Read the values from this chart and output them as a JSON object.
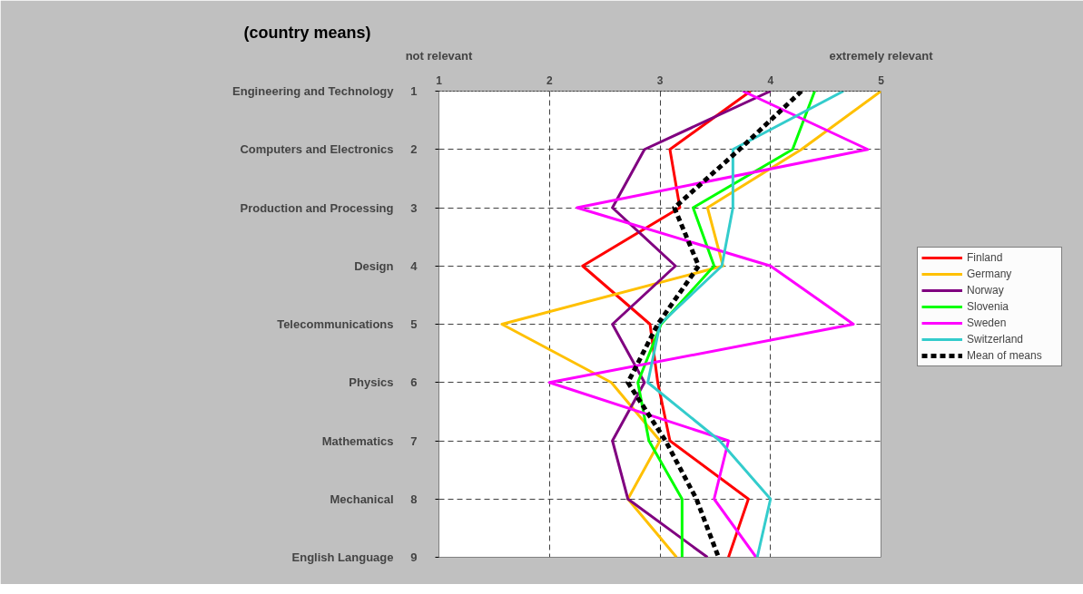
{
  "chart_data": {
    "type": "line",
    "orientation": "horizontal",
    "title": "(country means)",
    "categories": [
      "Engineering and Technology",
      "Computers and Electronics",
      "Production and Processing",
      "Design",
      "Telecommunications",
      "Physics",
      "Mathematics",
      "Mechanical",
      "English Language"
    ],
    "y2_categories": [
      "1",
      "2",
      "3",
      "4",
      "5",
      "6",
      "7",
      "8",
      "9"
    ],
    "xlim": [
      1,
      5
    ],
    "xticks": [
      1,
      2,
      3,
      4,
      5
    ],
    "annotations": [
      "not relevant",
      "extremely relevant"
    ],
    "grid": true,
    "legend": "right",
    "series": [
      {
        "name": "Finland",
        "color": "#ff0000",
        "values": [
          3.82,
          3.09,
          3.18,
          2.3,
          2.91,
          2.98,
          3.09,
          3.8,
          3.62
        ]
      },
      {
        "name": "Germany",
        "color": "#ffc000",
        "values": [
          5.0,
          4.28,
          3.43,
          3.57,
          1.57,
          2.56,
          3.0,
          2.71,
          3.15
        ]
      },
      {
        "name": "Norway",
        "color": "#800080",
        "values": [
          4.0,
          2.86,
          2.57,
          3.14,
          2.57,
          2.86,
          2.57,
          2.71,
          3.43
        ]
      },
      {
        "name": "Slovenia",
        "color": "#00ff00",
        "values": [
          4.4,
          4.2,
          3.3,
          3.49,
          3.01,
          2.8,
          2.9,
          3.2,
          3.2
        ]
      },
      {
        "name": "Sweden",
        "color": "#ff00ff",
        "values": [
          3.75,
          4.88,
          2.25,
          4.0,
          4.75,
          2.0,
          3.62,
          3.49,
          3.87
        ]
      },
      {
        "name": "Switzerland",
        "color": "#33cccc",
        "values": [
          4.66,
          3.66,
          3.66,
          3.56,
          3.0,
          2.89,
          3.54,
          4.0,
          3.88
        ]
      },
      {
        "name": "Mean of means",
        "color": "#000000",
        "line_style": "dashed",
        "values": [
          4.28,
          3.72,
          3.13,
          3.35,
          2.98,
          2.71,
          3.05,
          3.33,
          3.53
        ]
      }
    ]
  }
}
